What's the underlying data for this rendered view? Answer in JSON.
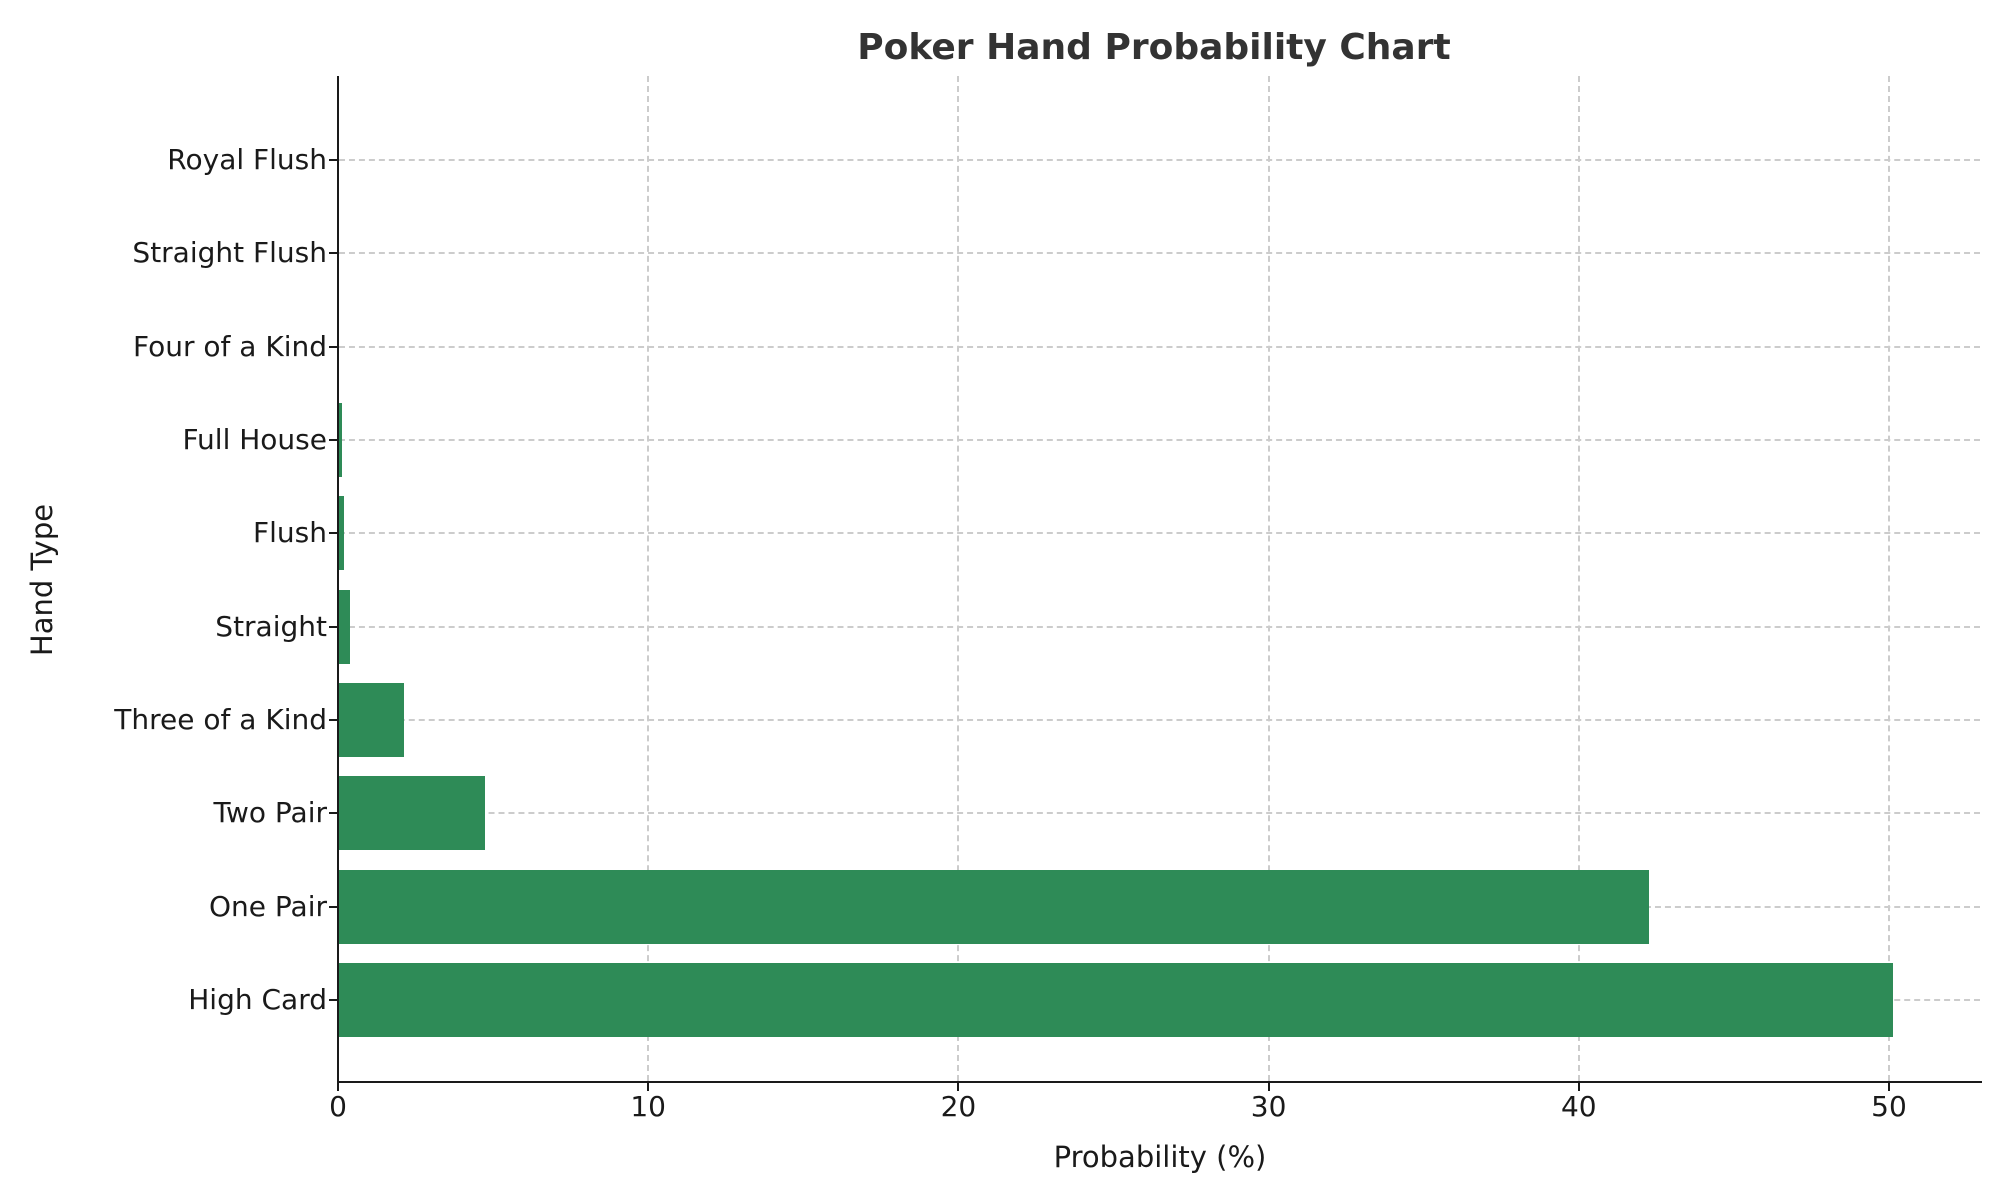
{
  "chart_data": {
    "type": "bar",
    "orientation": "horizontal",
    "title": "Poker Hand Probability Chart",
    "xlabel": "Probability (%)",
    "ylabel": "Hand Type",
    "categories": [
      "High Card",
      "One Pair",
      "Two Pair",
      "Three of a Kind",
      "Straight",
      "Flush",
      "Full House",
      "Four of a Kind",
      "Straight Flush",
      "Royal Flush"
    ],
    "values": [
      50.1177,
      42.2569,
      4.7539,
      2.1128,
      0.3925,
      0.1965,
      0.1441,
      0.024,
      0.00139,
      0.000154
    ],
    "xlim": [
      0,
      52.5
    ],
    "xticks": [
      0,
      10,
      20,
      30,
      40,
      50
    ],
    "grid": true,
    "grid_style": "dashed",
    "legend": null,
    "bar_color": "#2e8b57"
  },
  "labels": {
    "title": "Poker Hand Probability Chart",
    "xaxis": "Probability (%)",
    "yaxis": "Hand Type",
    "xticks": [
      "0",
      "10",
      "20",
      "30",
      "40",
      "50"
    ],
    "categories": [
      "High Card",
      "One Pair",
      "Two Pair",
      "Three of a Kind",
      "Straight",
      "Flush",
      "Full House",
      "Four of a Kind",
      "Straight Flush",
      "Royal Flush"
    ]
  }
}
